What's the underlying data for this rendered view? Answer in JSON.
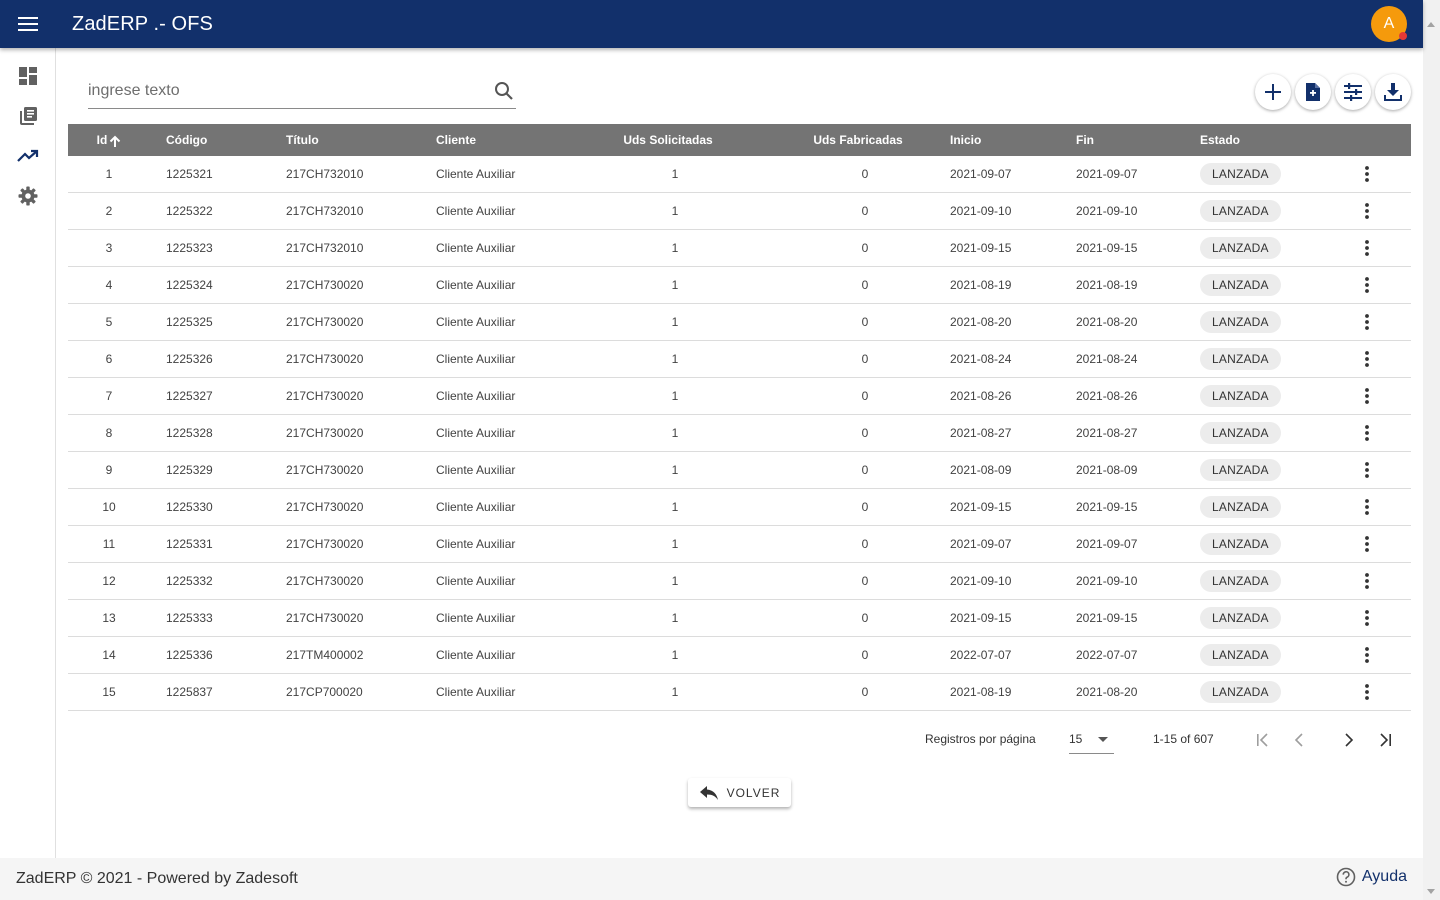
{
  "header": {
    "title": "ZadERP .- OFS",
    "avatar_initial": "A"
  },
  "sidebar": {
    "items": [
      {
        "icon": "dashboard-icon"
      },
      {
        "icon": "library-books-icon"
      },
      {
        "icon": "trending-up-icon"
      },
      {
        "icon": "settings-icon"
      }
    ]
  },
  "search": {
    "placeholder": "ingrese texto",
    "value": ""
  },
  "toolbar": {
    "buttons": [
      "add-icon",
      "document-icon",
      "filter-sliders-icon",
      "download-icon"
    ]
  },
  "table": {
    "headers": {
      "id": "Id",
      "codigo": "Código",
      "titulo": "Título",
      "cliente": "Cliente",
      "uds_solicitadas": "Uds Solicitadas",
      "uds_fabricadas": "Uds Fabricadas",
      "inicio": "Inicio",
      "fin": "Fin",
      "estado": "Estado"
    },
    "rows": [
      {
        "id": "1",
        "codigo": "1225321",
        "titulo": "217CH732010",
        "cliente": "Cliente Auxiliar",
        "sol": "1",
        "fab": "0",
        "inicio": "2021-09-07",
        "fin": "2021-09-07",
        "estado": "LANZADA"
      },
      {
        "id": "2",
        "codigo": "1225322",
        "titulo": "217CH732010",
        "cliente": "Cliente Auxiliar",
        "sol": "1",
        "fab": "0",
        "inicio": "2021-09-10",
        "fin": "2021-09-10",
        "estado": "LANZADA"
      },
      {
        "id": "3",
        "codigo": "1225323",
        "titulo": "217CH732010",
        "cliente": "Cliente Auxiliar",
        "sol": "1",
        "fab": "0",
        "inicio": "2021-09-15",
        "fin": "2021-09-15",
        "estado": "LANZADA"
      },
      {
        "id": "4",
        "codigo": "1225324",
        "titulo": "217CH730020",
        "cliente": "Cliente Auxiliar",
        "sol": "1",
        "fab": "0",
        "inicio": "2021-08-19",
        "fin": "2021-08-19",
        "estado": "LANZADA"
      },
      {
        "id": "5",
        "codigo": "1225325",
        "titulo": "217CH730020",
        "cliente": "Cliente Auxiliar",
        "sol": "1",
        "fab": "0",
        "inicio": "2021-08-20",
        "fin": "2021-08-20",
        "estado": "LANZADA"
      },
      {
        "id": "6",
        "codigo": "1225326",
        "titulo": "217CH730020",
        "cliente": "Cliente Auxiliar",
        "sol": "1",
        "fab": "0",
        "inicio": "2021-08-24",
        "fin": "2021-08-24",
        "estado": "LANZADA"
      },
      {
        "id": "7",
        "codigo": "1225327",
        "titulo": "217CH730020",
        "cliente": "Cliente Auxiliar",
        "sol": "1",
        "fab": "0",
        "inicio": "2021-08-26",
        "fin": "2021-08-26",
        "estado": "LANZADA"
      },
      {
        "id": "8",
        "codigo": "1225328",
        "titulo": "217CH730020",
        "cliente": "Cliente Auxiliar",
        "sol": "1",
        "fab": "0",
        "inicio": "2021-08-27",
        "fin": "2021-08-27",
        "estado": "LANZADA"
      },
      {
        "id": "9",
        "codigo": "1225329",
        "titulo": "217CH730020",
        "cliente": "Cliente Auxiliar",
        "sol": "1",
        "fab": "0",
        "inicio": "2021-08-09",
        "fin": "2021-08-09",
        "estado": "LANZADA"
      },
      {
        "id": "10",
        "codigo": "1225330",
        "titulo": "217CH730020",
        "cliente": "Cliente Auxiliar",
        "sol": "1",
        "fab": "0",
        "inicio": "2021-09-15",
        "fin": "2021-09-15",
        "estado": "LANZADA"
      },
      {
        "id": "11",
        "codigo": "1225331",
        "titulo": "217CH730020",
        "cliente": "Cliente Auxiliar",
        "sol": "1",
        "fab": "0",
        "inicio": "2021-09-07",
        "fin": "2021-09-07",
        "estado": "LANZADA"
      },
      {
        "id": "12",
        "codigo": "1225332",
        "titulo": "217CH730020",
        "cliente": "Cliente Auxiliar",
        "sol": "1",
        "fab": "0",
        "inicio": "2021-09-10",
        "fin": "2021-09-10",
        "estado": "LANZADA"
      },
      {
        "id": "13",
        "codigo": "1225333",
        "titulo": "217CH730020",
        "cliente": "Cliente Auxiliar",
        "sol": "1",
        "fab": "0",
        "inicio": "2021-09-15",
        "fin": "2021-09-15",
        "estado": "LANZADA"
      },
      {
        "id": "14",
        "codigo": "1225336",
        "titulo": "217TM400002",
        "cliente": "Cliente Auxiliar",
        "sol": "1",
        "fab": "0",
        "inicio": "2022-07-07",
        "fin": "2022-07-07",
        "estado": "LANZADA"
      },
      {
        "id": "15",
        "codigo": "1225837",
        "titulo": "217CP700020",
        "cliente": "Cliente Auxiliar",
        "sol": "1",
        "fab": "0",
        "inicio": "2021-08-19",
        "fin": "2021-08-20",
        "estado": "LANZADA"
      }
    ]
  },
  "paginator": {
    "label": "Registros por página",
    "page_size": "15",
    "range": "1-15 of 607"
  },
  "back_button": {
    "label": "VOLVER"
  },
  "footer": {
    "text": "ZadERP © 2021 - Powered by Zadesoft",
    "help": "Ayuda"
  },
  "colors": {
    "topbar": "#12306b",
    "avatar": "#f59a0c",
    "table_header": "#747474"
  }
}
